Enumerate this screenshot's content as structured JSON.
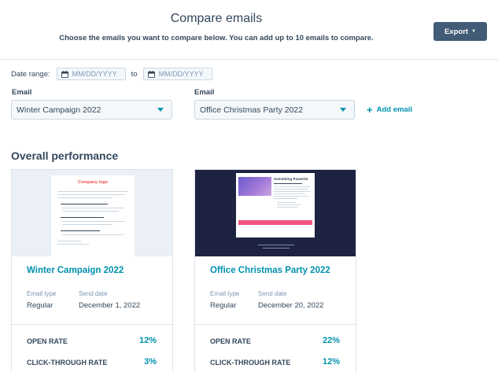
{
  "header": {
    "title": "Compare emails",
    "subtitle": "Choose the emails you want to compare below. You can add up to 10 emails to compare.",
    "export_label": "Export"
  },
  "date_range": {
    "label": "Date range:",
    "start_placeholder": "MM/DD/YYYY",
    "separator": "to",
    "end_placeholder": "MM/DD/YYYY"
  },
  "email_selectors": [
    {
      "label": "Email",
      "value": "Winter Campaign 2022"
    },
    {
      "label": "Email",
      "value": "Office Christmas Party 2022"
    }
  ],
  "add_email_label": "Add email",
  "section_title": "Overall performance",
  "cards": [
    {
      "preview_logo_text": "Company logo",
      "title": "Winter Campaign 2022",
      "email_type_label": "Email type",
      "email_type": "Regular",
      "send_date_label": "Send date",
      "send_date": "December 1, 2022",
      "stats": [
        {
          "label": "OPEN RATE",
          "value": "12%"
        },
        {
          "label": "CLICK-THROUGH RATE",
          "value": "3%"
        }
      ]
    },
    {
      "preview_heading_text": "Something Powerful",
      "title": "Office Christmas Party 2022",
      "email_type_label": "Email type",
      "email_type": "Regular",
      "send_date_label": "Send date",
      "send_date": "December 20, 2022",
      "stats": [
        {
          "label": "OPEN RATE",
          "value": "22%"
        },
        {
          "label": "CLICK-THROUGH RATE",
          "value": "12%"
        }
      ]
    }
  ],
  "colors": {
    "accent": "#0091ae",
    "export_button": "#425b76",
    "text": "#33475b",
    "logo_red": "#f2545b",
    "dark_preview_bg": "#1e2341"
  },
  "icons": {
    "date_picker": "calendar-icon",
    "dropdown": "caret-down-icon",
    "add": "plus-icon"
  }
}
